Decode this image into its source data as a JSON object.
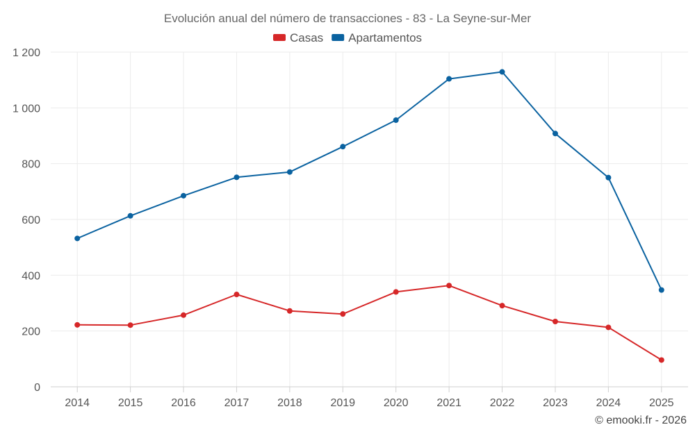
{
  "chart_data": {
    "type": "line",
    "title": "Evolución anual del número de transacciones - 83 - La Seyne-sur-Mer",
    "categories": [
      "2014",
      "2015",
      "2016",
      "2017",
      "2018",
      "2019",
      "2020",
      "2021",
      "2022",
      "2023",
      "2024",
      "2025"
    ],
    "series": [
      {
        "name": "Casas",
        "color": "#d62728",
        "values": [
          222,
          221,
          257,
          331,
          272,
          261,
          340,
          363,
          291,
          234,
          213,
          96
        ]
      },
      {
        "name": "Apartamentos",
        "color": "#0a62a0",
        "values": [
          532,
          613,
          685,
          751,
          770,
          861,
          956,
          1104,
          1129,
          908,
          750,
          347
        ]
      }
    ],
    "ylim": [
      0,
      1200
    ],
    "yticks": [
      0,
      200,
      400,
      600,
      800,
      1000,
      1200
    ],
    "ytick_labels": [
      "0",
      "200",
      "400",
      "600",
      "800",
      "1 000",
      "1 200"
    ],
    "xlabel": "",
    "ylabel": "",
    "grid": true,
    "legend_position": "top-center"
  },
  "credit": "© emooki.fr - 2026"
}
